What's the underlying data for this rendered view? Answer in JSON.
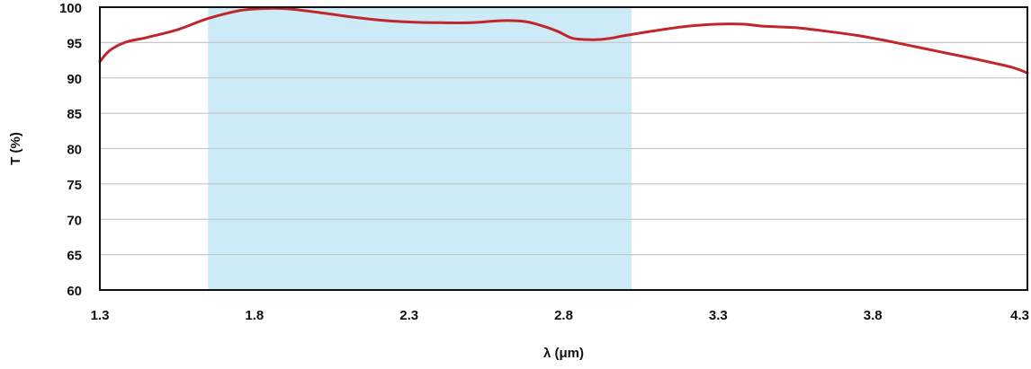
{
  "chart_data": {
    "type": "line",
    "title": "",
    "xlabel": "λ (μm)",
    "ylabel": "T (%)",
    "xlim": [
      1.3,
      4.3
    ],
    "ylim": [
      60,
      100
    ],
    "x_ticks": [
      "1.3",
      "1.8",
      "2.3",
      "2.8",
      "3.3",
      "3.8",
      "4.3"
    ],
    "y_ticks": [
      "60",
      "65",
      "70",
      "75",
      "80",
      "85",
      "90",
      "95",
      "100"
    ],
    "grid": "horizontal",
    "shaded_band": {
      "x_start": 1.65,
      "x_end": 3.02,
      "color": "#cdeaf7"
    },
    "series": [
      {
        "color": "#c0272d",
        "x": [
          1.3,
          1.33,
          1.38,
          1.45,
          1.55,
          1.65,
          1.75,
          1.82,
          1.9,
          2.0,
          2.1,
          2.2,
          2.3,
          2.4,
          2.5,
          2.6,
          2.67,
          2.72,
          2.78,
          2.83,
          2.9,
          2.95,
          3.0,
          3.1,
          3.2,
          3.3,
          3.38,
          3.45,
          3.55,
          3.65,
          3.75,
          3.85,
          3.95,
          4.05,
          4.15,
          4.25,
          4.3
        ],
        "y": [
          92.3,
          93.8,
          95.0,
          95.7,
          96.8,
          98.4,
          99.5,
          99.8,
          99.8,
          99.3,
          98.7,
          98.2,
          97.9,
          97.8,
          97.8,
          98.1,
          98.0,
          97.5,
          96.6,
          95.6,
          95.4,
          95.6,
          96.0,
          96.7,
          97.3,
          97.6,
          97.6,
          97.3,
          97.1,
          96.6,
          96.0,
          95.2,
          94.3,
          93.4,
          92.5,
          91.5,
          90.7
        ]
      }
    ]
  }
}
